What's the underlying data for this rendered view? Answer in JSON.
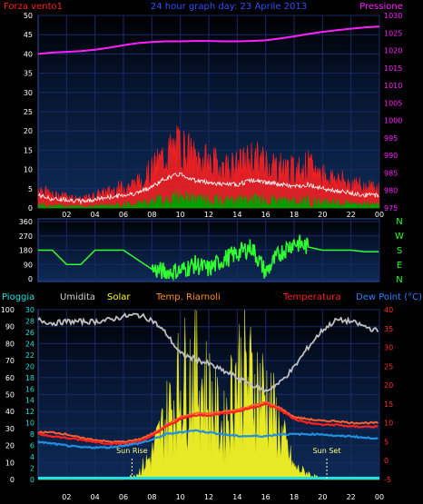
{
  "header": {
    "left_label": "Forza vento1",
    "title": "24 hour graph day: 23 Aprile 2013",
    "right_label": "Pressione"
  },
  "panel_direction": {
    "right_labels": [
      "N",
      "W",
      "S",
      "E",
      "N"
    ]
  },
  "panel_bottom_legend": {
    "items": [
      "Pioggia",
      "Umidita",
      "Solar",
      "Temp. Riarnoli",
      "Temperatura",
      "Dew Point (°C)"
    ]
  },
  "colors": {
    "wind_gust": "#ff2020",
    "wind_avg": "#ffffff",
    "wind_green": "#00a000",
    "pressure": "#ff20ff",
    "direction": "#30ff30",
    "humidity": "#c0c0c0",
    "solar": "#ffff20",
    "temp_secondary": "#ff6030",
    "temperature": "#ff2020",
    "dew_point": "#2090e0",
    "rain": "#20e0e0",
    "grid": "#1a2a66",
    "axis_text": "#ffffff",
    "panel_bg_top": "#0d2a50",
    "panel_bg_bottom": "#081a3a"
  },
  "chart_data": [
    {
      "type": "line",
      "name": "wind_pressure",
      "x_ticks": [
        "02",
        "04",
        "06",
        "08",
        "10",
        "12",
        "14",
        "16",
        "18",
        "20",
        "22",
        "00"
      ],
      "ylim_left": [
        0,
        50
      ],
      "yticks_left": [
        0,
        5,
        10,
        15,
        20,
        25,
        30,
        35,
        40,
        45,
        50
      ],
      "ylim_right": [
        975,
        1030
      ],
      "yticks_right": [
        975,
        980,
        985,
        990,
        995,
        1000,
        1005,
        1010,
        1015,
        1020,
        1025,
        1030
      ],
      "x_hours": [
        0,
        1,
        2,
        3,
        4,
        5,
        6,
        7,
        8,
        9,
        10,
        11,
        12,
        13,
        14,
        15,
        16,
        17,
        18,
        19,
        20,
        21,
        22,
        23,
        24
      ],
      "series": [
        {
          "name": "Forza vento1",
          "axis": "left",
          "values": [
            5,
            3,
            3,
            2,
            3,
            4,
            5,
            6,
            9,
            13,
            15,
            12,
            11,
            10,
            10,
            12,
            11,
            10,
            9,
            10,
            8,
            7,
            6,
            5,
            5
          ]
        },
        {
          "name": "Pressione",
          "axis": "right",
          "values": [
            1019.0,
            1019.4,
            1019.6,
            1019.8,
            1020.2,
            1020.8,
            1021.5,
            1022.1,
            1022.4,
            1022.6,
            1022.6,
            1022.7,
            1022.7,
            1022.6,
            1022.6,
            1022.7,
            1022.9,
            1023.4,
            1024.0,
            1024.7,
            1025.3,
            1025.8,
            1026.2,
            1026.6,
            1026.8
          ]
        }
      ]
    },
    {
      "type": "scatter",
      "name": "wind_direction",
      "x_ticks": [
        "02",
        "04",
        "06",
        "08",
        "10",
        "12",
        "14",
        "16",
        "18",
        "20",
        "22",
        "00"
      ],
      "ylim": [
        0,
        360
      ],
      "yticks": [
        0,
        90,
        180,
        270,
        360
      ],
      "x_hours": [
        0,
        1,
        2,
        3,
        4,
        5,
        6,
        7,
        8,
        9,
        10,
        11,
        12,
        13,
        14,
        15,
        16,
        17,
        18,
        19,
        20,
        21,
        22,
        23,
        24
      ],
      "series": [
        {
          "name": "direction",
          "values": [
            180,
            180,
            90,
            90,
            180,
            180,
            180,
            120,
            60,
            40,
            50,
            90,
            60,
            120,
            160,
            200,
            40,
            160,
            230,
            200,
            180,
            180,
            180,
            170,
            170
          ]
        }
      ]
    },
    {
      "type": "line",
      "name": "weather",
      "x_ticks": [
        "02",
        "04",
        "06",
        "08",
        "10",
        "12",
        "14",
        "16",
        "18",
        "20",
        "22",
        "00"
      ],
      "ylim_left": [
        0,
        100
      ],
      "yticks_left": [
        0,
        10,
        20,
        30,
        40,
        50,
        60,
        70,
        80,
        90,
        100
      ],
      "ylim_left2": [
        0,
        30
      ],
      "yticks_left2": [
        0,
        2,
        4,
        6,
        8,
        10,
        12,
        14,
        16,
        18,
        20,
        22,
        24,
        26,
        28,
        30
      ],
      "ylim_right": [
        -5,
        40
      ],
      "yticks_right": [
        -5,
        0,
        5,
        10,
        15,
        20,
        25,
        30,
        35,
        40
      ],
      "annotations": [
        "Sun Rise",
        "Sun Set"
      ],
      "x_hours": [
        0,
        1,
        2,
        3,
        4,
        5,
        6,
        7,
        8,
        9,
        10,
        11,
        12,
        13,
        14,
        15,
        16,
        17,
        18,
        19,
        20,
        21,
        22,
        23,
        24
      ],
      "series": [
        {
          "name": "Umidita",
          "axis": "left",
          "values": [
            94,
            92,
            93,
            93,
            93,
            94,
            96,
            97,
            94,
            86,
            74,
            71,
            68,
            64,
            60,
            56,
            52,
            57,
            66,
            78,
            88,
            94,
            93,
            90,
            87
          ]
        },
        {
          "name": "Solar",
          "axis": "left",
          "values": [
            0,
            0,
            0,
            0,
            0,
            0,
            0,
            5,
            20,
            50,
            80,
            90,
            70,
            40,
            90,
            80,
            70,
            40,
            10,
            5,
            0,
            0,
            0,
            0,
            0
          ]
        },
        {
          "name": "Temp. Riarnoli",
          "axis": "right",
          "values": [
            7.5,
            7.5,
            7.0,
            6.0,
            5.5,
            5.0,
            5.0,
            5.5,
            7.0,
            9.5,
            11.5,
            12.5,
            12.5,
            13.0,
            13.5,
            14.5,
            15.5,
            14.0,
            11.5,
            11.0,
            10.5,
            10.5,
            10.0,
            10.0,
            10.0
          ]
        },
        {
          "name": "Temperatura",
          "axis": "right",
          "values": [
            7.0,
            6.5,
            6.0,
            5.5,
            5.0,
            4.5,
            4.5,
            5.0,
            6.5,
            9.0,
            11.0,
            12.0,
            12.0,
            12.5,
            13.0,
            14.0,
            15.0,
            13.5,
            11.0,
            10.0,
            9.5,
            9.5,
            9.0,
            9.0,
            9.0
          ]
        },
        {
          "name": "Dew Point (°C)",
          "axis": "right",
          "values": [
            5.0,
            4.5,
            4.0,
            3.5,
            3.5,
            3.5,
            4.0,
            4.5,
            5.5,
            7.0,
            7.5,
            8.0,
            7.5,
            7.0,
            6.5,
            6.5,
            6.5,
            7.0,
            7.0,
            7.0,
            7.0,
            6.5,
            6.5,
            6.0,
            6.0
          ]
        },
        {
          "name": "Pioggia",
          "axis": "left",
          "values": [
            0,
            0,
            0,
            0,
            0,
            0,
            0,
            0,
            0,
            0,
            0,
            0,
            0,
            0,
            0,
            0,
            0,
            0,
            0,
            0,
            0,
            0,
            0,
            0,
            0
          ]
        }
      ],
      "sun_rise_hour": 6.6,
      "sun_set_hour": 20.3
    }
  ]
}
